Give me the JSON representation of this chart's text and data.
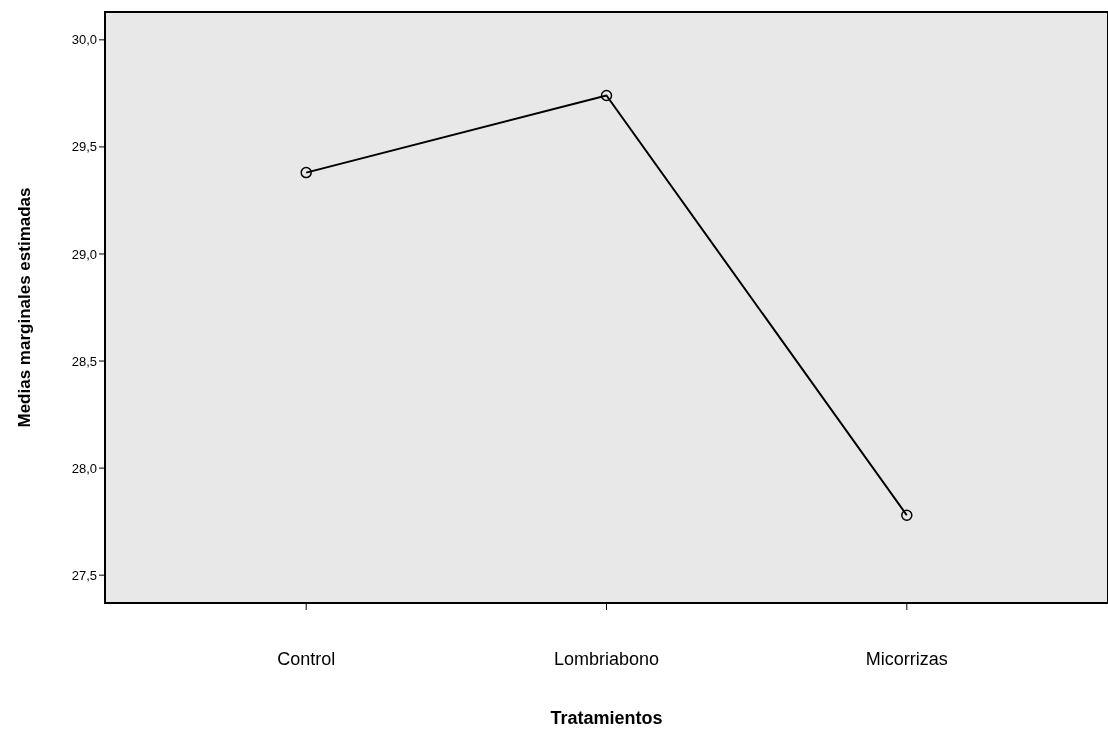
{
  "chart_data": {
    "type": "line",
    "xlabel": "Tratamientos",
    "ylabel": "Medias marginales estimadas",
    "categories": [
      "Control",
      "Lombriabono",
      "Micorrizas"
    ],
    "series": [
      {
        "color": "#000000",
        "values": [
          29.38,
          29.74,
          27.78
        ]
      }
    ],
    "ylim": [
      27.37,
      30.13
    ],
    "yticks": [
      {
        "value": 27.5,
        "label": "27,5"
      },
      {
        "value": 28,
        "label": "28,0"
      },
      {
        "value": 28.5,
        "label": "28,5"
      },
      {
        "value": 29,
        "label": "29,0"
      },
      {
        "value": 29.5,
        "label": "29,5"
      },
      {
        "value": 30,
        "label": "30,0"
      }
    ],
    "grid": false,
    "marker": "circle",
    "line_style": "solid"
  }
}
